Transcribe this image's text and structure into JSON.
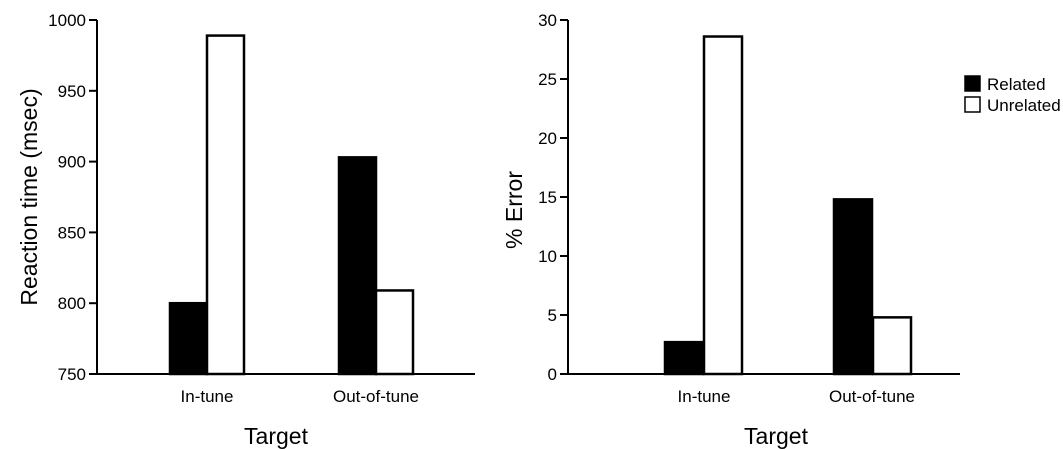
{
  "chart_data": [
    {
      "type": "bar",
      "categories": [
        "In-tune",
        "Out-of-tune"
      ],
      "series": [
        {
          "name": "Related",
          "values": [
            800,
            903
          ],
          "color": "#000000"
        },
        {
          "name": "Unrelated",
          "values": [
            989,
            809
          ],
          "color": "#ffffff"
        }
      ],
      "xlabel": "Target",
      "ylabel": "Reaction time (msec)",
      "ylim": [
        750,
        1000
      ],
      "yticks": [
        "750",
        "800",
        "850",
        "900",
        "950",
        "1000"
      ],
      "grid": false
    },
    {
      "type": "bar",
      "categories": [
        "In-tune",
        "Out-of-tune"
      ],
      "series": [
        {
          "name": "Related",
          "values": [
            2.7,
            14.8
          ],
          "color": "#000000"
        },
        {
          "name": "Unrelated",
          "values": [
            28.6,
            4.8
          ],
          "color": "#ffffff"
        }
      ],
      "xlabel": "Target",
      "ylabel": "% Error",
      "ylim": [
        0,
        30
      ],
      "yticks": [
        "0",
        "5",
        "10",
        "15",
        "20",
        "25",
        "30"
      ],
      "grid": false,
      "legend": {
        "position": "top-right",
        "entries": [
          "Related",
          "Unrelated"
        ]
      }
    }
  ]
}
